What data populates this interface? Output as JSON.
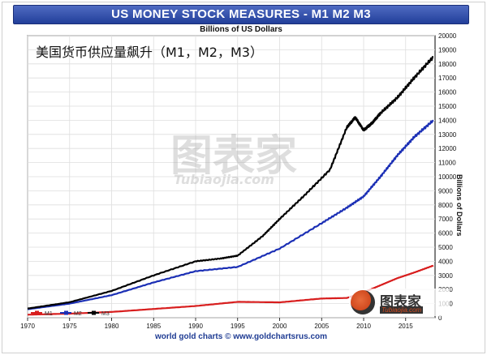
{
  "overlay_title": "美国货币供应量飙升（M1，M2，M3）",
  "watermark": {
    "main_text": "图表家",
    "sub_text": "Tubiaojia.com",
    "badge_text": "图表家",
    "badge_sub": "Tubiaojia.com"
  },
  "colors": {
    "M1": "#d81e1e",
    "M2": "#1b2fb5",
    "M3": "#000000",
    "title_bar": "#2a45a1"
  },
  "chart_data": {
    "type": "line",
    "title": "US MONEY STOCK MEASURES - M1 M2 M3",
    "subtitle": "Billions of US Dollars",
    "ylabel": "Billions of Dollars",
    "xlabel": "",
    "footer": "world gold charts © www.goldchartsrus.com",
    "xlim": [
      1970,
      2018.5
    ],
    "ylim": [
      0,
      20000
    ],
    "x_ticks": [
      "1970",
      "1975",
      "1980",
      "1985",
      "1990",
      "1995",
      "2000",
      "2005",
      "2010",
      "2015"
    ],
    "y_ticks": [
      "0",
      "1000",
      "2000",
      "3000",
      "4000",
      "5000",
      "6000",
      "7000",
      "8000",
      "9000",
      "10000",
      "11000",
      "12000",
      "13000",
      "14000",
      "15000",
      "16000",
      "17000",
      "18000",
      "19000",
      "20000"
    ],
    "grid": true,
    "legend": "bottom-left",
    "series": [
      {
        "name": "M1",
        "x": [
          1970,
          1975,
          1980,
          1985,
          1990,
          1995,
          2000,
          2005,
          2008,
          2009,
          2010,
          2012,
          2014,
          2016,
          2018.3
        ],
        "y": [
          215,
          290,
          410,
          620,
          830,
          1125,
          1090,
          1360,
          1400,
          1600,
          1800,
          2300,
          2800,
          3200,
          3700
        ]
      },
      {
        "name": "M2",
        "x": [
          1970,
          1975,
          1980,
          1985,
          1990,
          1995,
          2000,
          2005,
          2008,
          2010,
          2012,
          2014,
          2016,
          2018.3
        ],
        "y": [
          600,
          1000,
          1600,
          2500,
          3300,
          3600,
          4900,
          6700,
          7800,
          8600,
          10000,
          11500,
          12800,
          14000
        ]
      },
      {
        "name": "M3",
        "x": [
          1970,
          1975,
          1980,
          1985,
          1990,
          1993,
          1995,
          1998,
          2000,
          2003,
          2006,
          2008,
          2009,
          2010,
          2011,
          2012,
          2014,
          2016,
          2018.3
        ],
        "y": [
          650,
          1100,
          1900,
          3000,
          4000,
          4200,
          4400,
          5800,
          7000,
          8700,
          10500,
          13500,
          14200,
          13300,
          13800,
          14500,
          15600,
          17000,
          18500
        ]
      }
    ]
  }
}
